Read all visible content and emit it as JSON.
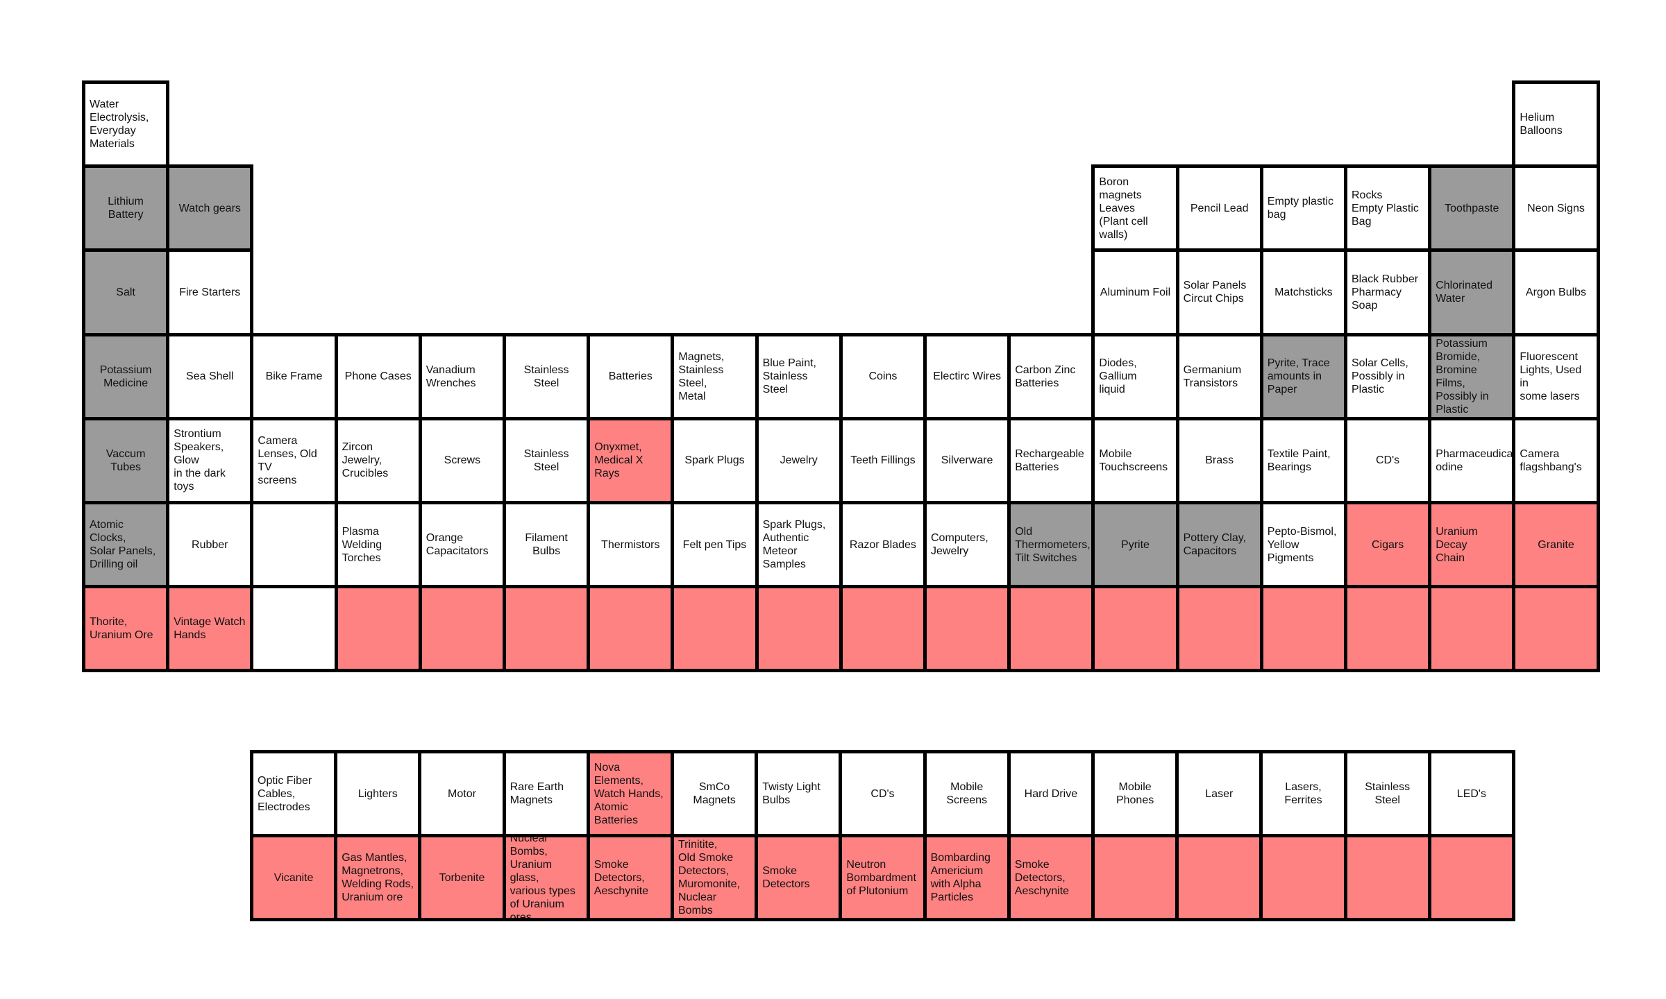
{
  "colors": {
    "white": "#ffffff",
    "gray": "#9b9b9b",
    "red": "#ff8282",
    "border": "#000000"
  },
  "main_table": [
    {
      "r": 1,
      "c": 1,
      "text": "Water\nElectrolysis,\nEveryday\nMaterials",
      "color": "white",
      "align": "l"
    },
    {
      "r": 1,
      "c": 18,
      "text": "Helium\nBalloons",
      "color": "white",
      "align": "l"
    },
    {
      "r": 2,
      "c": 1,
      "text": "Lithium Battery",
      "color": "gray",
      "align": "c"
    },
    {
      "r": 2,
      "c": 2,
      "text": "Watch gears",
      "color": "gray",
      "align": "c"
    },
    {
      "r": 2,
      "c": 13,
      "text": "Boron magnets\nLeaves\n(Plant cell walls)",
      "color": "white",
      "align": "l"
    },
    {
      "r": 2,
      "c": 14,
      "text": "Pencil Lead",
      "color": "white",
      "align": "c"
    },
    {
      "r": 2,
      "c": 15,
      "text": "Empty plastic\nbag",
      "color": "white",
      "align": "l"
    },
    {
      "r": 2,
      "c": 16,
      "text": "Rocks\nEmpty Plastic\nBag",
      "color": "white",
      "align": "l"
    },
    {
      "r": 2,
      "c": 17,
      "text": "Toothpaste",
      "color": "gray",
      "align": "c"
    },
    {
      "r": 2,
      "c": 18,
      "text": "Neon Signs",
      "color": "white",
      "align": "c"
    },
    {
      "r": 3,
      "c": 1,
      "text": "Salt",
      "color": "gray",
      "align": "c"
    },
    {
      "r": 3,
      "c": 2,
      "text": "Fire Starters",
      "color": "white",
      "align": "c"
    },
    {
      "r": 3,
      "c": 13,
      "text": "Aluminum Foil",
      "color": "white",
      "align": "c"
    },
    {
      "r": 3,
      "c": 14,
      "text": "Solar Panels\nCircut Chips",
      "color": "white",
      "align": "l"
    },
    {
      "r": 3,
      "c": 15,
      "text": "Matchsticks",
      "color": "white",
      "align": "c"
    },
    {
      "r": 3,
      "c": 16,
      "text": "Black Rubber\nPharmacy\nSoap",
      "color": "white",
      "align": "l"
    },
    {
      "r": 3,
      "c": 17,
      "text": "Chlorinated\nWater",
      "color": "gray",
      "align": "l"
    },
    {
      "r": 3,
      "c": 18,
      "text": "Argon Bulbs",
      "color": "white",
      "align": "c"
    },
    {
      "r": 4,
      "c": 1,
      "text": "Potassium\nMedicine",
      "color": "gray",
      "align": "c"
    },
    {
      "r": 4,
      "c": 2,
      "text": "Sea Shell",
      "color": "white",
      "align": "c"
    },
    {
      "r": 4,
      "c": 3,
      "text": "Bike Frame",
      "color": "white",
      "align": "c"
    },
    {
      "r": 4,
      "c": 4,
      "text": "Phone Cases",
      "color": "white",
      "align": "c"
    },
    {
      "r": 4,
      "c": 5,
      "text": "Vanadium\nWrenches",
      "color": "white",
      "align": "l"
    },
    {
      "r": 4,
      "c": 6,
      "text": "Stainless Steel",
      "color": "white",
      "align": "c"
    },
    {
      "r": 4,
      "c": 7,
      "text": "Batteries",
      "color": "white",
      "align": "c"
    },
    {
      "r": 4,
      "c": 8,
      "text": "Magnets,\nStainless Steel,\nMetal",
      "color": "white",
      "align": "l"
    },
    {
      "r": 4,
      "c": 9,
      "text": "Blue Paint,\nStainless Steel",
      "color": "white",
      "align": "l"
    },
    {
      "r": 4,
      "c": 10,
      "text": "Coins",
      "color": "white",
      "align": "c"
    },
    {
      "r": 4,
      "c": 11,
      "text": "Electirc Wires",
      "color": "white",
      "align": "c"
    },
    {
      "r": 4,
      "c": 12,
      "text": "Carbon Zinc\nBatteries",
      "color": "white",
      "align": "l"
    },
    {
      "r": 4,
      "c": 13,
      "text": "Diodes, Gallium\nliquid",
      "color": "white",
      "align": "l"
    },
    {
      "r": 4,
      "c": 14,
      "text": "Germanium\nTransistors",
      "color": "white",
      "align": "l"
    },
    {
      "r": 4,
      "c": 15,
      "text": "Pyrite, Trace\namounts in\nPaper",
      "color": "gray",
      "align": "l"
    },
    {
      "r": 4,
      "c": 16,
      "text": "Solar Cells,\nPossibly in\nPlastic",
      "color": "white",
      "align": "l"
    },
    {
      "r": 4,
      "c": 17,
      "text": "Potassium\nBromide,\nBromine Films,\nPossibly in\nPlastic",
      "color": "gray",
      "align": "l"
    },
    {
      "r": 4,
      "c": 18,
      "text": "Fluorescent\nLights, Used in\nsome lasers",
      "color": "white",
      "align": "l"
    },
    {
      "r": 5,
      "c": 1,
      "text": "Vaccum Tubes",
      "color": "gray",
      "align": "c"
    },
    {
      "r": 5,
      "c": 2,
      "text": "Strontium\nSpeakers, Glow\nin the dark toys",
      "color": "white",
      "align": "l"
    },
    {
      "r": 5,
      "c": 3,
      "text": "Camera\nLenses, Old TV\nscreens",
      "color": "white",
      "align": "l"
    },
    {
      "r": 5,
      "c": 4,
      "text": "Zircon Jewelry,\nCrucibles",
      "color": "white",
      "align": "l"
    },
    {
      "r": 5,
      "c": 5,
      "text": "Screws",
      "color": "white",
      "align": "c"
    },
    {
      "r": 5,
      "c": 6,
      "text": "Stainless Steel",
      "color": "white",
      "align": "c"
    },
    {
      "r": 5,
      "c": 7,
      "text": "Onyxmet,\nMedical X Rays",
      "color": "red",
      "align": "l"
    },
    {
      "r": 5,
      "c": 8,
      "text": "Spark Plugs",
      "color": "white",
      "align": "c"
    },
    {
      "r": 5,
      "c": 9,
      "text": "Jewelry",
      "color": "white",
      "align": "c"
    },
    {
      "r": 5,
      "c": 10,
      "text": "Teeth Fillings",
      "color": "white",
      "align": "c"
    },
    {
      "r": 5,
      "c": 11,
      "text": "Silverware",
      "color": "white",
      "align": "c"
    },
    {
      "r": 5,
      "c": 12,
      "text": "Rechargeable\nBatteries",
      "color": "white",
      "align": "l"
    },
    {
      "r": 5,
      "c": 13,
      "text": "Mobile\nTouchscreens",
      "color": "white",
      "align": "l"
    },
    {
      "r": 5,
      "c": 14,
      "text": "Brass",
      "color": "white",
      "align": "c"
    },
    {
      "r": 5,
      "c": 15,
      "text": "Textile Paint,\nBearings",
      "color": "white",
      "align": "l"
    },
    {
      "r": 5,
      "c": 16,
      "text": "CD's",
      "color": "white",
      "align": "c"
    },
    {
      "r": 5,
      "c": 17,
      "text": "Pharmaceudical\nodine",
      "color": "white",
      "align": "l"
    },
    {
      "r": 5,
      "c": 18,
      "text": "Camera\nflagshbang's",
      "color": "white",
      "align": "l"
    },
    {
      "r": 6,
      "c": 1,
      "text": "Atomic Clocks,\nSolar Panels,\nDrilling oil",
      "color": "gray",
      "align": "l"
    },
    {
      "r": 6,
      "c": 2,
      "text": "Rubber",
      "color": "white",
      "align": "c"
    },
    {
      "r": 6,
      "c": 3,
      "text": "",
      "color": "white",
      "align": "c"
    },
    {
      "r": 6,
      "c": 4,
      "text": "Plasma\nWelding\nTorches",
      "color": "white",
      "align": "l"
    },
    {
      "r": 6,
      "c": 5,
      "text": "Orange\nCapacitators",
      "color": "white",
      "align": "l"
    },
    {
      "r": 6,
      "c": 6,
      "text": "Filament Bulbs",
      "color": "white",
      "align": "c"
    },
    {
      "r": 6,
      "c": 7,
      "text": "Thermistors",
      "color": "white",
      "align": "c"
    },
    {
      "r": 6,
      "c": 8,
      "text": "Felt pen Tips",
      "color": "white",
      "align": "c"
    },
    {
      "r": 6,
      "c": 9,
      "text": "Spark Plugs,\nAuthentic\nMeteor\nSamples",
      "color": "white",
      "align": "l"
    },
    {
      "r": 6,
      "c": 10,
      "text": "Razor Blades",
      "color": "white",
      "align": "c"
    },
    {
      "r": 6,
      "c": 11,
      "text": "Computers,\nJewelry",
      "color": "white",
      "align": "l"
    },
    {
      "r": 6,
      "c": 12,
      "text": "Old\nThermometers,\nTilt Switches",
      "color": "gray",
      "align": "l"
    },
    {
      "r": 6,
      "c": 13,
      "text": "Pyrite",
      "color": "gray",
      "align": "c"
    },
    {
      "r": 6,
      "c": 14,
      "text": "Pottery Clay,\nCapacitors",
      "color": "gray",
      "align": "l"
    },
    {
      "r": 6,
      "c": 15,
      "text": "Pepto-Bismol,\nYellow\nPigments",
      "color": "white",
      "align": "l"
    },
    {
      "r": 6,
      "c": 16,
      "text": "Cigars",
      "color": "red",
      "align": "c"
    },
    {
      "r": 6,
      "c": 17,
      "text": "Uranium Decay\nChain",
      "color": "red",
      "align": "l"
    },
    {
      "r": 6,
      "c": 18,
      "text": "Granite",
      "color": "red",
      "align": "c"
    },
    {
      "r": 7,
      "c": 1,
      "text": "Thorite,\nUranium Ore",
      "color": "red",
      "align": "l"
    },
    {
      "r": 7,
      "c": 2,
      "text": "Vintage Watch\nHands",
      "color": "red",
      "align": "l"
    },
    {
      "r": 7,
      "c": 3,
      "text": "",
      "color": "white",
      "align": "c"
    },
    {
      "r": 7,
      "c": 4,
      "text": "",
      "color": "red",
      "align": "c"
    },
    {
      "r": 7,
      "c": 5,
      "text": "",
      "color": "red",
      "align": "c"
    },
    {
      "r": 7,
      "c": 6,
      "text": "",
      "color": "red",
      "align": "c"
    },
    {
      "r": 7,
      "c": 7,
      "text": "",
      "color": "red",
      "align": "c"
    },
    {
      "r": 7,
      "c": 8,
      "text": "",
      "color": "red",
      "align": "c"
    },
    {
      "r": 7,
      "c": 9,
      "text": "",
      "color": "red",
      "align": "c"
    },
    {
      "r": 7,
      "c": 10,
      "text": "",
      "color": "red",
      "align": "c"
    },
    {
      "r": 7,
      "c": 11,
      "text": "",
      "color": "red",
      "align": "c"
    },
    {
      "r": 7,
      "c": 12,
      "text": "",
      "color": "red",
      "align": "c"
    },
    {
      "r": 7,
      "c": 13,
      "text": "",
      "color": "red",
      "align": "c"
    },
    {
      "r": 7,
      "c": 14,
      "text": "",
      "color": "red",
      "align": "c"
    },
    {
      "r": 7,
      "c": 15,
      "text": "",
      "color": "red",
      "align": "c"
    },
    {
      "r": 7,
      "c": 16,
      "text": "",
      "color": "red",
      "align": "c"
    },
    {
      "r": 7,
      "c": 17,
      "text": "",
      "color": "red",
      "align": "c"
    },
    {
      "r": 7,
      "c": 18,
      "text": "",
      "color": "red",
      "align": "c"
    }
  ],
  "f_block": [
    {
      "r": 1,
      "c": 1,
      "text": "Optic Fiber\nCables,\nElectrodes",
      "color": "white",
      "align": "l"
    },
    {
      "r": 1,
      "c": 2,
      "text": "Lighters",
      "color": "white",
      "align": "c"
    },
    {
      "r": 1,
      "c": 3,
      "text": "Motor",
      "color": "white",
      "align": "c"
    },
    {
      "r": 1,
      "c": 4,
      "text": "Rare Earth\nMagnets",
      "color": "white",
      "align": "l"
    },
    {
      "r": 1,
      "c": 5,
      "text": "Nova Elements,\nWatch Hands,\nAtomic\nBatteries",
      "color": "red",
      "align": "l"
    },
    {
      "r": 1,
      "c": 6,
      "text": "SmCo Magnets",
      "color": "white",
      "align": "c"
    },
    {
      "r": 1,
      "c": 7,
      "text": "Twisty Light\nBulbs",
      "color": "white",
      "align": "l"
    },
    {
      "r": 1,
      "c": 8,
      "text": "CD's",
      "color": "white",
      "align": "c"
    },
    {
      "r": 1,
      "c": 9,
      "text": "Mobile Screens",
      "color": "white",
      "align": "c"
    },
    {
      "r": 1,
      "c": 10,
      "text": "Hard Drive",
      "color": "white",
      "align": "c"
    },
    {
      "r": 1,
      "c": 11,
      "text": "Mobile Phones",
      "color": "white",
      "align": "c"
    },
    {
      "r": 1,
      "c": 12,
      "text": "Laser",
      "color": "white",
      "align": "c"
    },
    {
      "r": 1,
      "c": 13,
      "text": "Lasers, Ferrites",
      "color": "white",
      "align": "c"
    },
    {
      "r": 1,
      "c": 14,
      "text": "Stainless Steel",
      "color": "white",
      "align": "c"
    },
    {
      "r": 1,
      "c": 15,
      "text": "LED's",
      "color": "white",
      "align": "c"
    },
    {
      "r": 2,
      "c": 1,
      "text": "Vicanite",
      "color": "red",
      "align": "c"
    },
    {
      "r": 2,
      "c": 2,
      "text": "Gas Mantles,\nMagnetrons,\nWelding Rods,\nUranium ore",
      "color": "red",
      "align": "l"
    },
    {
      "r": 2,
      "c": 3,
      "text": "Torbenite",
      "color": "red",
      "align": "c"
    },
    {
      "r": 2,
      "c": 4,
      "text": "Nuclear\nBombs,\nUranium glass,\nvarious types\nof Uranium\nores",
      "color": "red",
      "align": "l"
    },
    {
      "r": 2,
      "c": 5,
      "text": "Smoke\nDetectors,\nAeschynite",
      "color": "red",
      "align": "l"
    },
    {
      "r": 2,
      "c": 6,
      "text": "Trinitite,\nOld Smoke\nDetectors,\nMuromonite,\nNuclear Bombs",
      "color": "red",
      "align": "l"
    },
    {
      "r": 2,
      "c": 7,
      "text": "Smoke\nDetectors",
      "color": "red",
      "align": "l"
    },
    {
      "r": 2,
      "c": 8,
      "text": "Neutron\nBombardment\nof Plutonium",
      "color": "red",
      "align": "l"
    },
    {
      "r": 2,
      "c": 9,
      "text": "Bombarding\nAmericium\nwith Alpha\nParticles",
      "color": "red",
      "align": "l"
    },
    {
      "r": 2,
      "c": 10,
      "text": "Smoke\nDetectors,\nAeschynite",
      "color": "red",
      "align": "l"
    },
    {
      "r": 2,
      "c": 11,
      "text": "",
      "color": "red",
      "align": "c"
    },
    {
      "r": 2,
      "c": 12,
      "text": "",
      "color": "red",
      "align": "c"
    },
    {
      "r": 2,
      "c": 13,
      "text": "",
      "color": "red",
      "align": "c"
    },
    {
      "r": 2,
      "c": 14,
      "text": "",
      "color": "red",
      "align": "c"
    },
    {
      "r": 2,
      "c": 15,
      "text": "",
      "color": "red",
      "align": "c"
    }
  ]
}
